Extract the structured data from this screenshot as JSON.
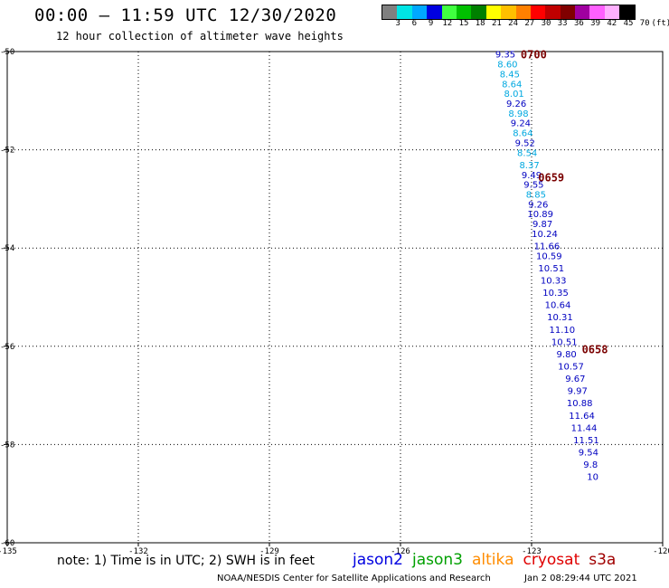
{
  "header": {
    "title": "00:00 – 11:59 UTC 12/30/2020",
    "subtitle": "12 hour collection of altimeter wave heights"
  },
  "legend": {
    "colors": [
      "#808080",
      "#00e5e5",
      "#00a8ff",
      "#0000e0",
      "#40ff40",
      "#00c000",
      "#008000",
      "#ffff00",
      "#ffc000",
      "#ff8000",
      "#ff0000",
      "#c00000",
      "#800000",
      "#a000a0",
      "#ff60ff",
      "#ffb0ff",
      "#000000"
    ],
    "labels": [
      "3",
      "6",
      "9",
      "12",
      "15",
      "18",
      "21",
      "24",
      "27",
      "30",
      "33",
      "36",
      "39",
      "42",
      "45",
      "70",
      "(ft)"
    ],
    "label_positions": [
      1,
      2,
      3,
      4,
      5,
      6,
      7,
      8,
      9,
      10,
      11,
      12,
      13,
      14,
      15,
      16,
      17
    ]
  },
  "axes": {
    "lon_ticks": [
      "-135",
      "-132",
      "-129",
      "-126",
      "-123",
      "-120"
    ],
    "lat_ticks": [
      "-50",
      "-52",
      "-54",
      "-56",
      "-58",
      "-60"
    ]
  },
  "chart_data": {
    "type": "scatter",
    "x_label": "longitude",
    "y_label": "latitude",
    "xlim": [
      -135,
      -120
    ],
    "ylim": [
      -60,
      -50
    ],
    "grid": true,
    "points": [
      {
        "lon": -123.6,
        "lat": -50.05,
        "value": "9.35",
        "color": "#0000c0"
      },
      {
        "lon": -123.55,
        "lat": -50.25,
        "value": "8.60",
        "color": "#00a8e0"
      },
      {
        "lon": -123.5,
        "lat": -50.45,
        "value": "8.45",
        "color": "#00a8e0"
      },
      {
        "lon": -123.45,
        "lat": -50.65,
        "value": "8.64",
        "color": "#00a8e0"
      },
      {
        "lon": -123.4,
        "lat": -50.85,
        "value": "8.01",
        "color": "#00a8e0"
      },
      {
        "lon": -123.35,
        "lat": -51.05,
        "value": "9.26",
        "color": "#0000c0"
      },
      {
        "lon": -123.3,
        "lat": -51.25,
        "value": "8.98",
        "color": "#00a8e0"
      },
      {
        "lon": -123.25,
        "lat": -51.45,
        "value": "9.24",
        "color": "#0000c0"
      },
      {
        "lon": -123.2,
        "lat": -51.65,
        "value": "8.64",
        "color": "#00a8e0"
      },
      {
        "lon": -123.15,
        "lat": -51.85,
        "value": "9.52",
        "color": "#0000c0"
      },
      {
        "lon": -123.1,
        "lat": -52.05,
        "value": "8.54",
        "color": "#00a8e0"
      },
      {
        "lon": -123.05,
        "lat": -52.3,
        "value": "8.37",
        "color": "#00a8e0"
      },
      {
        "lon": -123.0,
        "lat": -52.5,
        "value": "9.49",
        "color": "#0000c0"
      },
      {
        "lon": -122.95,
        "lat": -52.7,
        "value": "9.55",
        "color": "#0000c0"
      },
      {
        "lon": -122.9,
        "lat": -52.9,
        "value": "8.85",
        "color": "#00a8e0"
      },
      {
        "lon": -122.85,
        "lat": -53.1,
        "value": "9.26",
        "color": "#0000c0"
      },
      {
        "lon": -122.8,
        "lat": -53.3,
        "value": "10.89",
        "color": "#0000c0"
      },
      {
        "lon": -122.75,
        "lat": -53.5,
        "value": "9.87",
        "color": "#0000c0"
      },
      {
        "lon": -122.7,
        "lat": -53.7,
        "value": "10.24",
        "color": "#0000c0"
      },
      {
        "lon": -122.65,
        "lat": -53.95,
        "value": "11.66",
        "color": "#0000c0"
      },
      {
        "lon": -122.6,
        "lat": -54.15,
        "value": "10.59",
        "color": "#0000c0"
      },
      {
        "lon": -122.55,
        "lat": -54.4,
        "value": "10.51",
        "color": "#0000c0"
      },
      {
        "lon": -122.5,
        "lat": -54.65,
        "value": "10.33",
        "color": "#0000c0"
      },
      {
        "lon": -122.45,
        "lat": -54.9,
        "value": "10.35",
        "color": "#0000c0"
      },
      {
        "lon": -122.4,
        "lat": -55.15,
        "value": "10.64",
        "color": "#0000c0"
      },
      {
        "lon": -122.35,
        "lat": -55.4,
        "value": "10.31",
        "color": "#0000c0"
      },
      {
        "lon": -122.3,
        "lat": -55.65,
        "value": "11.10",
        "color": "#0000c0"
      },
      {
        "lon": -122.25,
        "lat": -55.9,
        "value": "10.51",
        "color": "#0000c0"
      },
      {
        "lon": -122.2,
        "lat": -56.15,
        "value": "9.80",
        "color": "#0000c0"
      },
      {
        "lon": -122.1,
        "lat": -56.4,
        "value": "10.57",
        "color": "#0000c0"
      },
      {
        "lon": -122.0,
        "lat": -56.65,
        "value": "9.67",
        "color": "#0000c0"
      },
      {
        "lon": -121.95,
        "lat": -56.9,
        "value": "9.97",
        "color": "#0000c0"
      },
      {
        "lon": -121.9,
        "lat": -57.15,
        "value": "10.88",
        "color": "#0000c0"
      },
      {
        "lon": -121.85,
        "lat": -57.4,
        "value": "11.64",
        "color": "#0000c0"
      },
      {
        "lon": -121.8,
        "lat": -57.65,
        "value": "11.44",
        "color": "#0000c0"
      },
      {
        "lon": -121.75,
        "lat": -57.9,
        "value": "11.51",
        "color": "#0000c0"
      },
      {
        "lon": -121.7,
        "lat": -58.15,
        "value": "9.54",
        "color": "#0000c0"
      },
      {
        "lon": -121.65,
        "lat": -58.4,
        "value": "9.8",
        "color": "#0000c0"
      },
      {
        "lon": -121.6,
        "lat": -58.65,
        "value": "10",
        "color": "#0000c0"
      }
    ],
    "time_labels": [
      {
        "lon": -123.25,
        "lat": -50.05,
        "text": "0700"
      },
      {
        "lon": -122.85,
        "lat": -52.55,
        "text": "0659"
      },
      {
        "lon": -121.85,
        "lat": -56.05,
        "text": "0658"
      }
    ]
  },
  "note": "note: 1) Time is in UTC; 2) SWH is in feet",
  "satellites": [
    {
      "name": "jason2",
      "color": "#0000e0"
    },
    {
      "name": "jason3",
      "color": "#00a000"
    },
    {
      "name": "altika",
      "color": "#ff8c00"
    },
    {
      "name": "cryosat",
      "color": "#e00000"
    },
    {
      "name": "s3a",
      "color": "#a00000"
    }
  ],
  "footer": {
    "credit": "NOAA/NESDIS Center for Satellite Applications and Research",
    "timestamp": "Jan  2 08:29:44 UTC 2021"
  }
}
